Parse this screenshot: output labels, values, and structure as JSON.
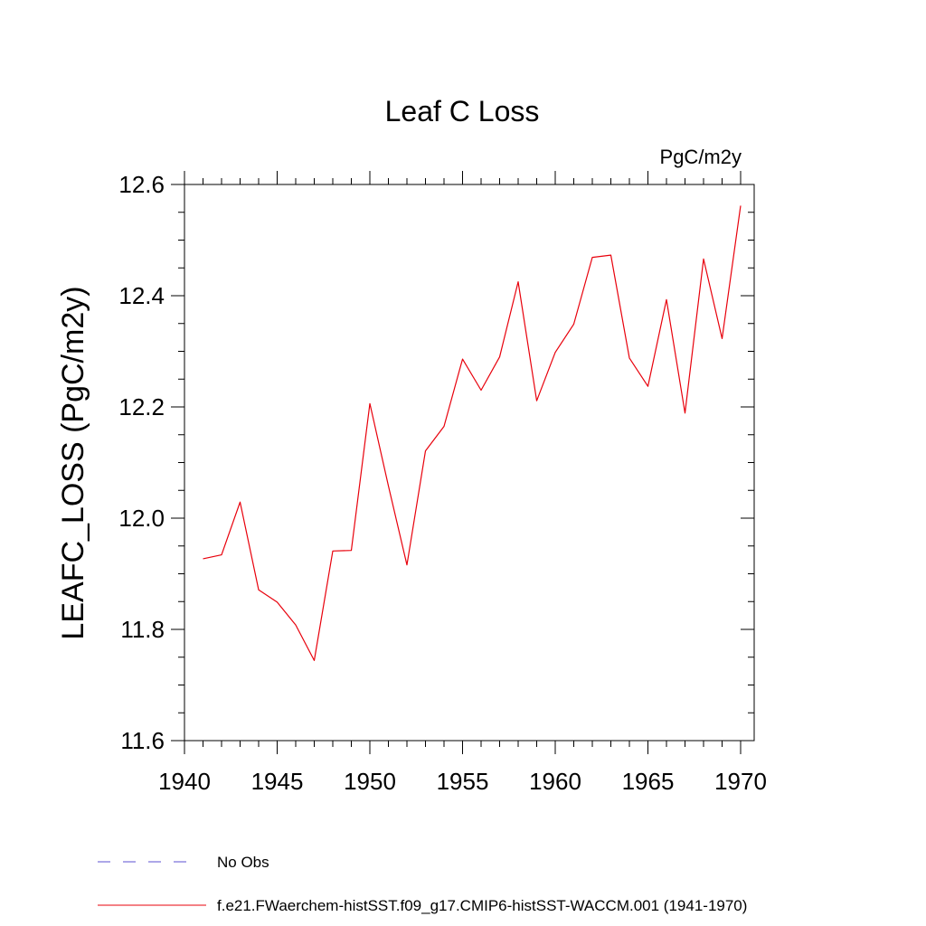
{
  "chart_data": {
    "type": "line",
    "title": "Leaf C Loss",
    "units": "PgC/m2y",
    "xlabel": "",
    "ylabel": "LEAFC_LOSS  (PgC/m2y)",
    "xlim": [
      1940,
      1970
    ],
    "ylim": [
      11.6,
      12.6
    ],
    "xticks": [
      "1940",
      "1945",
      "1950",
      "1955",
      "1960",
      "1965",
      "1970"
    ],
    "yticks": [
      "11.6",
      "11.8",
      "12.0",
      "12.2",
      "12.4",
      "12.6"
    ],
    "grid": false,
    "legend_position": "bottom-left",
    "series": [
      {
        "name": "f.e21.FWaerchem-histSST.f09_g17.CMIP6-histSST-WACCM.001 (1941-1970)",
        "color": "#e8000b",
        "style": "solid",
        "x": [
          1941,
          1942,
          1943,
          1944,
          1945,
          1946,
          1947,
          1948,
          1949,
          1950,
          1951,
          1952,
          1953,
          1954,
          1955,
          1956,
          1957,
          1958,
          1959,
          1960,
          1961,
          1962,
          1963,
          1964,
          1965,
          1966,
          1967,
          1968,
          1969,
          1970
        ],
        "y": [
          11.927,
          11.934,
          12.029,
          11.871,
          11.849,
          11.808,
          11.744,
          11.941,
          11.942,
          12.206,
          12.058,
          11.916,
          12.121,
          12.165,
          12.286,
          12.23,
          12.29,
          12.425,
          12.211,
          12.298,
          12.349,
          12.469,
          12.473,
          12.288,
          12.237,
          12.393,
          12.189,
          12.466,
          12.323,
          12.562
        ]
      }
    ],
    "legend": [
      {
        "label": "No Obs",
        "color": "#5b4fd0",
        "style": "dashed"
      },
      {
        "label": "f.e21.FWaerchem-histSST.f09_g17.CMIP6-histSST-WACCM.001 (1941-1970)",
        "color": "#e8000b",
        "style": "solid"
      }
    ]
  }
}
